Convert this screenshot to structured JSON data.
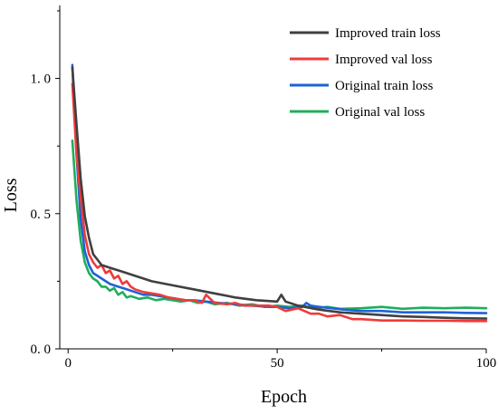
{
  "chart_data": {
    "type": "line",
    "title": "",
    "xlabel": "Epoch",
    "ylabel": "Loss",
    "xlim": [
      -2,
      100
    ],
    "ylim": [
      0,
      1.27
    ],
    "xticks": [
      0,
      50,
      100
    ],
    "xtick_labels": [
      "0",
      "50",
      "100"
    ],
    "yticks": [
      0.0,
      0.5,
      1.0
    ],
    "ytick_labels": [
      "0. 0",
      "0. 5",
      "1. 0"
    ],
    "grid": false,
    "legend_position": "top-right",
    "series": [
      {
        "name": "Improved train loss",
        "color": "#404040",
        "x": [
          1,
          2,
          3,
          4,
          5,
          6,
          7,
          8,
          10,
          13,
          16,
          20,
          25,
          30,
          35,
          40,
          45,
          50,
          51,
          52,
          55,
          60,
          65,
          70,
          75,
          80,
          85,
          90,
          95,
          100
        ],
        "y": [
          1.04,
          0.83,
          0.63,
          0.49,
          0.41,
          0.35,
          0.33,
          0.31,
          0.3,
          0.285,
          0.27,
          0.25,
          0.235,
          0.22,
          0.205,
          0.19,
          0.18,
          0.175,
          0.2,
          0.175,
          0.16,
          0.145,
          0.135,
          0.13,
          0.125,
          0.12,
          0.118,
          0.115,
          0.113,
          0.112
        ]
      },
      {
        "name": "Improved val loss",
        "color": "#ee3b3b",
        "x": [
          1,
          2,
          3,
          4,
          5,
          6,
          7,
          8,
          9,
          10,
          11,
          12,
          13,
          14,
          15,
          16,
          18,
          20,
          22,
          24,
          26,
          28,
          30,
          32,
          33,
          35,
          38,
          40,
          42,
          45,
          48,
          50,
          52,
          55,
          58,
          60,
          62,
          65,
          68,
          70,
          75,
          80,
          85,
          90,
          95,
          100
        ],
        "y": [
          0.98,
          0.72,
          0.56,
          0.42,
          0.35,
          0.32,
          0.3,
          0.31,
          0.28,
          0.29,
          0.26,
          0.27,
          0.24,
          0.25,
          0.23,
          0.22,
          0.21,
          0.205,
          0.2,
          0.19,
          0.185,
          0.18,
          0.18,
          0.17,
          0.2,
          0.17,
          0.165,
          0.17,
          0.16,
          0.16,
          0.16,
          0.155,
          0.14,
          0.15,
          0.13,
          0.13,
          0.12,
          0.125,
          0.11,
          0.11,
          0.105,
          0.105,
          0.104,
          0.104,
          0.103,
          0.103
        ]
      },
      {
        "name": "Original train loss",
        "color": "#1f62d6",
        "x": [
          1,
          2,
          3,
          4,
          5,
          6,
          7,
          8,
          9,
          10,
          12,
          14,
          16,
          18,
          20,
          22,
          24,
          26,
          28,
          30,
          33,
          36,
          40,
          44,
          48,
          50,
          53,
          56,
          57,
          58,
          60,
          63,
          66,
          70,
          75,
          80,
          85,
          90,
          95,
          100
        ],
        "y": [
          1.05,
          0.72,
          0.48,
          0.36,
          0.31,
          0.28,
          0.27,
          0.26,
          0.25,
          0.24,
          0.23,
          0.22,
          0.21,
          0.2,
          0.2,
          0.195,
          0.19,
          0.185,
          0.18,
          0.18,
          0.175,
          0.17,
          0.165,
          0.16,
          0.155,
          0.155,
          0.15,
          0.155,
          0.17,
          0.16,
          0.155,
          0.15,
          0.145,
          0.14,
          0.14,
          0.135,
          0.135,
          0.135,
          0.133,
          0.132
        ]
      },
      {
        "name": "Original val loss",
        "color": "#1fae5b",
        "x": [
          1,
          2,
          3,
          4,
          5,
          6,
          7,
          8,
          9,
          10,
          11,
          12,
          13,
          14,
          15,
          17,
          19,
          21,
          23,
          25,
          27,
          29,
          31,
          33,
          35,
          38,
          41,
          44,
          47,
          50,
          53,
          56,
          59,
          62,
          65,
          70,
          75,
          80,
          85,
          90,
          95,
          100
        ],
        "y": [
          0.77,
          0.55,
          0.4,
          0.32,
          0.28,
          0.26,
          0.25,
          0.23,
          0.23,
          0.215,
          0.225,
          0.2,
          0.21,
          0.19,
          0.195,
          0.185,
          0.19,
          0.18,
          0.185,
          0.18,
          0.175,
          0.18,
          0.17,
          0.175,
          0.165,
          0.17,
          0.16,
          0.165,
          0.155,
          0.16,
          0.155,
          0.16,
          0.15,
          0.155,
          0.148,
          0.15,
          0.155,
          0.148,
          0.152,
          0.15,
          0.152,
          0.15
        ]
      }
    ]
  }
}
